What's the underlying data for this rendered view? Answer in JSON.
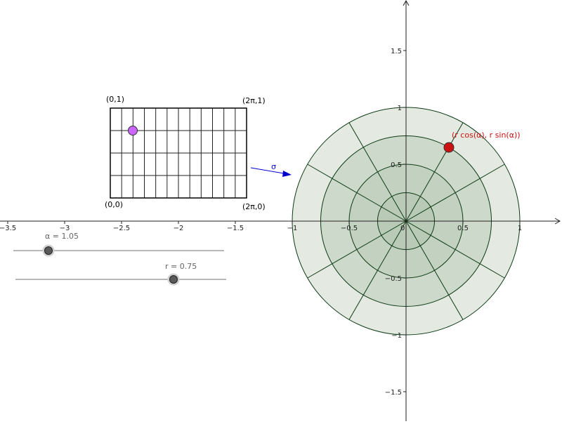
{
  "axes": {
    "x_ticks": [
      "−3.5",
      "−3",
      "−2.5",
      "−2",
      "−1.5",
      "−1",
      "−0.5",
      "0",
      "0.5",
      "1"
    ],
    "y_ticks": [
      "1.5",
      "1",
      "0.5",
      "−0.5",
      "−1",
      "−1.5"
    ]
  },
  "rectangle": {
    "corner_top_left": "(0,1)",
    "corner_top_right": "(2π,1)",
    "corner_bottom_left": "(0,0)",
    "corner_bottom_right": "(2π,0)"
  },
  "mapping": {
    "label": "σ"
  },
  "point_label": "(r cos(α), r sin(α))",
  "sliders": {
    "alpha": {
      "label": "α = 1.05",
      "value": 1.05,
      "min": 0,
      "max": 6.283
    },
    "r": {
      "label": "r = 0.75",
      "value": 0.75,
      "min": 0,
      "max": 1
    }
  },
  "colors": {
    "disk_outer": "#e4eae2",
    "disk_ring_mid": "#cdd9cb",
    "disk_ring_inner": "#b9cab6",
    "disk_stroke": "#0d3a14",
    "point_red": "#cc1111",
    "point_purple": "#cc66ff",
    "arrow_blue": "#0000cc",
    "slider_track": "#b8b8b8",
    "slider_knob": "#5a5a5a"
  }
}
